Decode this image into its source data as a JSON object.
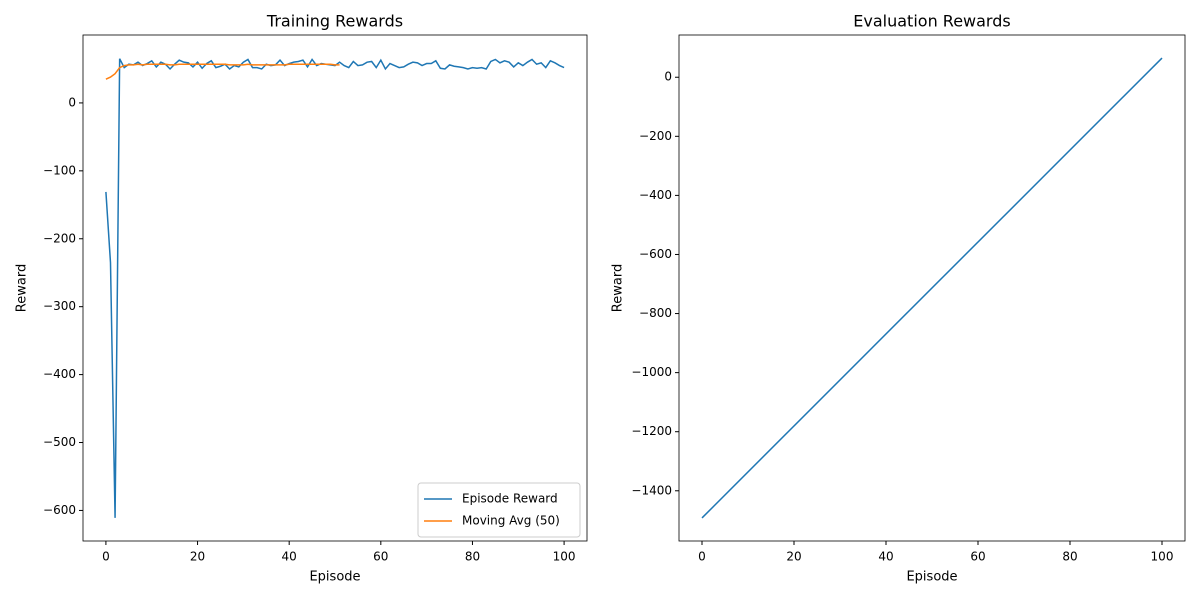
{
  "chart_data": [
    {
      "type": "line",
      "title": "Training Rewards",
      "xlabel": "Episode",
      "ylabel": "Reward",
      "x": [
        0,
        1,
        2,
        3,
        4,
        5,
        6,
        7,
        8,
        9,
        10,
        11,
        12,
        13,
        14,
        15,
        16,
        17,
        18,
        19,
        20,
        21,
        22,
        23,
        24,
        25,
        26,
        27,
        28,
        29,
        30,
        31,
        32,
        33,
        34,
        35,
        36,
        37,
        38,
        39,
        40,
        41,
        42,
        43,
        44,
        45,
        46,
        47,
        48,
        49,
        50,
        51,
        52,
        53,
        54,
        55,
        56,
        57,
        58,
        59,
        60,
        61,
        62,
        63,
        64,
        65,
        66,
        67,
        68,
        69,
        70,
        71,
        72,
        73,
        74,
        75,
        76,
        77,
        78,
        79,
        80,
        81,
        82,
        83,
        84,
        85,
        86,
        87,
        88,
        89,
        90,
        91,
        92,
        93,
        94,
        95,
        96,
        97,
        98,
        99,
        100
      ],
      "series": [
        {
          "name": "Episode Reward",
          "color": "#1f77b4",
          "values": [
            -131,
            -235,
            -611,
            65,
            52,
            57,
            56,
            60,
            55,
            58,
            62,
            53,
            60,
            57,
            50,
            57,
            63,
            60,
            59,
            53,
            60,
            51,
            58,
            62,
            52,
            54,
            57,
            50,
            55,
            53,
            60,
            64,
            52,
            52,
            50,
            57,
            55,
            56,
            63,
            55,
            58,
            60,
            61,
            63,
            53,
            64,
            55,
            58,
            57,
            56,
            55,
            60,
            55,
            52,
            61,
            55,
            56,
            60,
            61,
            52,
            63,
            50,
            58,
            55,
            52,
            53,
            57,
            60,
            59,
            55,
            58,
            58,
            62,
            51,
            50,
            56,
            54,
            53,
            52,
            50,
            52,
            51,
            52,
            50,
            61,
            64,
            59,
            62,
            60,
            53,
            59,
            55,
            60,
            64,
            57,
            59,
            52,
            62,
            59,
            55,
            52
          ]
        },
        {
          "name": "Moving Avg (50)",
          "color": "#ff7f0e",
          "values": [
            35,
            38,
            43,
            52,
            55,
            56,
            56,
            57,
            56,
            57,
            57,
            57,
            57,
            57,
            56,
            56,
            57,
            57,
            57,
            57,
            57,
            57,
            57,
            57,
            57,
            57,
            57,
            56,
            56,
            56,
            56,
            57,
            56,
            56,
            56,
            56,
            56,
            56,
            56,
            56,
            57,
            57,
            57,
            57,
            57,
            57,
            57,
            57,
            57,
            57,
            56,
            56,
            null,
            null,
            null,
            null,
            null,
            null,
            null,
            null,
            null,
            null,
            null,
            null,
            null,
            null,
            null,
            null,
            null,
            null,
            null,
            null,
            null,
            null,
            null,
            null,
            null,
            null,
            null,
            null,
            null,
            null,
            null,
            null,
            null,
            null,
            null,
            null,
            null,
            null,
            null,
            null,
            null,
            null,
            null,
            null,
            null,
            null,
            null,
            null,
            null
          ]
        }
      ],
      "xlim": [
        -5,
        105
      ],
      "ylim": [
        -645,
        100
      ],
      "xticks": [
        0,
        20,
        40,
        60,
        80,
        100
      ],
      "yticks": [
        {
          "value": -600,
          "label": "−600"
        },
        {
          "value": -500,
          "label": "−500"
        },
        {
          "value": -400,
          "label": "−400"
        },
        {
          "value": -300,
          "label": "−300"
        },
        {
          "value": -200,
          "label": "−200"
        },
        {
          "value": -100,
          "label": "−100"
        },
        0
      ],
      "legend": "lower right"
    },
    {
      "type": "line",
      "title": "Evaluation Rewards",
      "xlabel": "Episode",
      "ylabel": "Reward",
      "x": [
        0,
        100
      ],
      "series": [
        {
          "color": "#1f77b4",
          "values": [
            -1492,
            65
          ]
        }
      ],
      "xlim": [
        -5,
        105
      ],
      "ylim": [
        -1570,
        143
      ],
      "xticks": [
        0,
        20,
        40,
        60,
        80,
        100
      ],
      "yticks": [
        {
          "value": -1400,
          "label": "−1400"
        },
        {
          "value": -1200,
          "label": "−1200"
        },
        {
          "value": -1000,
          "label": "−1000"
        },
        {
          "value": -800,
          "label": "−800"
        },
        {
          "value": -600,
          "label": "−600"
        },
        {
          "value": -400,
          "label": "−400"
        },
        {
          "value": -200,
          "label": "−200"
        },
        0
      ]
    }
  ]
}
